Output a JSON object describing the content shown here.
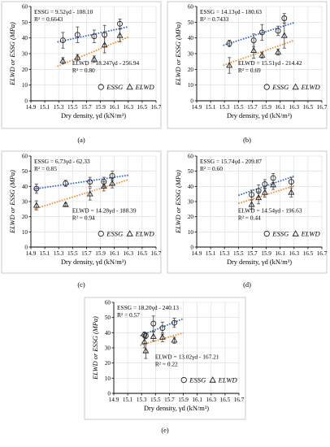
{
  "colors": {
    "essg": "#2e62c4",
    "elwd": "#f08a24",
    "axis": "#000000",
    "grid": "#d9d9d9",
    "frame": "#bfbfbf"
  },
  "chart_data": [
    {
      "type": "scatter",
      "panel_label": "(a)",
      "xlabel": "Dry density, γd (kN/m³)",
      "ylabel": "ELWD or ESSG (MPa)",
      "xlim": [
        14.9,
        16.7
      ],
      "ylim": [
        0,
        60
      ],
      "xticks": [
        "14.9",
        "15.1",
        "15.3",
        "15.5",
        "15.7",
        "15.9",
        "16.1",
        "16.3",
        "16.5",
        "16.7"
      ],
      "yticks": [
        "0",
        "10",
        "20",
        "30",
        "40",
        "50",
        "60"
      ],
      "grid": true,
      "legend": "bottom-right",
      "series": [
        {
          "name": "ESSG",
          "marker": "circle",
          "points": [
            [
              15.36,
              38.5,
              5
            ],
            [
              15.57,
              42,
              5
            ],
            [
              15.81,
              41,
              4
            ],
            [
              15.96,
              42,
              6
            ],
            [
              16.18,
              49,
              3
            ]
          ],
          "fit": {
            "equation": "ESSG = 9.52γd - 108.10",
            "r2": "R² = 0.6643",
            "slope": 9.52,
            "intercept": -108.1,
            "xrange": [
              15.28,
              16.3
            ]
          }
        },
        {
          "name": "ELWD",
          "marker": "triangle",
          "points": [
            [
              15.36,
              25.5,
              2
            ],
            [
              15.57,
              27.5,
              2
            ],
            [
              15.81,
              26.5,
              2
            ],
            [
              15.96,
              35.5,
              5
            ],
            [
              16.18,
              41.5,
              4
            ]
          ],
          "fit": {
            "equation": "ELWD = 18.247γd - 256.94",
            "r2": "R² = 0.80",
            "slope": 18.247,
            "intercept": -256.94,
            "xrange": [
              15.28,
              16.3
            ]
          }
        }
      ]
    },
    {
      "type": "scatter",
      "panel_label": "(b)",
      "xlabel": "Dry density, γd (kN/m³)",
      "ylabel": "ELWD or ESSG (MPa)",
      "xlim": [
        14.9,
        16.7
      ],
      "ylim": [
        0,
        60
      ],
      "xticks": [
        "14.9",
        "15.1",
        "15.3",
        "15.5",
        "15.7",
        "15.9",
        "16.1",
        "16.3",
        "16.5",
        "16.7"
      ],
      "yticks": [
        "0",
        "10",
        "20",
        "30",
        "40",
        "50",
        "60"
      ],
      "grid": true,
      "legend": "bottom-right",
      "series": [
        {
          "name": "ESSG",
          "marker": "circle",
          "points": [
            [
              15.37,
              36.5,
              2
            ],
            [
              15.72,
              38.5,
              4
            ],
            [
              15.84,
              43.5,
              5
            ],
            [
              16.07,
              44.5,
              3
            ],
            [
              16.16,
              52.5,
              3
            ]
          ],
          "fit": {
            "equation": "ESSG = 14.13γd - 180.63",
            "r2": "R² = 0.7433",
            "slope": 14.13,
            "intercept": -180.63,
            "xrange": [
              15.28,
              16.3
            ]
          }
        },
        {
          "name": "ELWD",
          "marker": "triangle",
          "points": [
            [
              15.37,
              22.5,
              5
            ],
            [
              15.72,
              32,
              5
            ],
            [
              15.84,
              29,
              2
            ],
            [
              16.07,
              31,
              2
            ],
            [
              16.16,
              41.5,
              8
            ]
          ],
          "fit": {
            "equation": "ELWD = 15.51γd - 214.42",
            "r2": "R² = 0.69",
            "slope": 15.51,
            "intercept": -214.42,
            "xrange": [
              15.28,
              16.3
            ]
          }
        }
      ]
    },
    {
      "type": "scatter",
      "panel_label": "(c)",
      "xlabel": "Dry density, γd (kN/m³)",
      "ylabel": "ELWD or ESSG (MPa)",
      "xlim": [
        14.9,
        16.7
      ],
      "ylim": [
        0,
        60
      ],
      "xticks": [
        "14.9",
        "15.1",
        "15.3",
        "15.5",
        "15.7",
        "15.9",
        "16.1",
        "16.3",
        "16.5",
        "16.7"
      ],
      "yticks": [
        "0",
        "10",
        "20",
        "30",
        "40",
        "50",
        "60"
      ],
      "grid": true,
      "legend": "bottom-right",
      "series": [
        {
          "name": "ESSG",
          "marker": "circle",
          "points": [
            [
              14.98,
              38.5,
              3
            ],
            [
              15.4,
              42,
              2
            ],
            [
              15.75,
              43,
              3
            ],
            [
              15.95,
              43,
              3
            ],
            [
              16.07,
              47,
              3
            ]
          ],
          "fit": {
            "equation": "ESSG = 6.73γd - 62.33",
            "r2": "R² = 0.85",
            "slope": 6.73,
            "intercept": -62.33,
            "xrange": [
              14.95,
              16.3
            ]
          }
        },
        {
          "name": "ELWD",
          "marker": "triangle",
          "points": [
            [
              14.98,
              27.5,
              3
            ],
            [
              15.4,
              28,
              1
            ],
            [
              15.75,
              35,
              4
            ],
            [
              15.95,
              40,
              3
            ],
            [
              16.07,
              42,
              3
            ]
          ],
          "fit": {
            "equation": "ELWD = 14.28γd - 188.39",
            "r2": "R² = 0.94",
            "slope": 14.28,
            "intercept": -188.39,
            "xrange": [
              14.95,
              16.3
            ]
          }
        }
      ]
    },
    {
      "type": "scatter",
      "panel_label": "(d)",
      "xlabel": "Dry density, γd (kN/m³)",
      "ylabel": "ELWD or ESSG (MPa)",
      "xlim": [
        14.9,
        16.7
      ],
      "ylim": [
        0,
        60
      ],
      "xticks": [
        "14.9",
        "15.1",
        "15.3",
        "15.5",
        "15.7",
        "15.9",
        "16.1",
        "16.3",
        "16.5",
        "16.7"
      ],
      "yticks": [
        "0",
        "10",
        "20",
        "30",
        "40",
        "50",
        "60"
      ],
      "grid": true,
      "legend": "bottom-right",
      "series": [
        {
          "name": "ESSG",
          "marker": "circle",
          "points": [
            [
              15.69,
              34.5,
              3
            ],
            [
              15.79,
              37,
              4
            ],
            [
              15.88,
              41.5,
              3
            ],
            [
              16.0,
              45.5,
              3
            ],
            [
              16.26,
              43,
              3
            ]
          ],
          "fit": {
            "equation": "ESSG = 15.74γd - 209.87",
            "r2": "R² = 0.60",
            "slope": 15.74,
            "intercept": -209.87,
            "xrange": [
              15.5,
              16.3
            ]
          }
        },
        {
          "name": "ELWD",
          "marker": "triangle",
          "points": [
            [
              15.69,
              28,
              3
            ],
            [
              15.79,
              32.5,
              4
            ],
            [
              15.88,
              36,
              3
            ],
            [
              16.0,
              41,
              3
            ],
            [
              16.26,
              36,
              3
            ]
          ],
          "fit": {
            "equation": "ELWD = 14.54γd - 196.63",
            "r2": "R² = 0.44",
            "slope": 14.54,
            "intercept": -196.63,
            "xrange": [
              15.5,
              16.3
            ]
          }
        }
      ]
    },
    {
      "type": "scatter",
      "panel_label": "(e)",
      "xlabel": "Dry density, γd (kN/m³)",
      "ylabel": "ELWD or ESSG (MPa)",
      "xlim": [
        14.9,
        16.7
      ],
      "ylim": [
        0,
        60
      ],
      "xticks": [
        "14.9",
        "15.1",
        "15.3",
        "15.5",
        "15.7",
        "15.9",
        "16.1",
        "16.3",
        "16.5",
        "16.7"
      ],
      "yticks": [
        "0",
        "10",
        "20",
        "30",
        "40",
        "50",
        "60"
      ],
      "grid": true,
      "legend": "bottom-right",
      "series": [
        {
          "name": "ESSG",
          "marker": "circle",
          "points": [
            [
              15.34,
              38.5,
              2
            ],
            [
              15.36,
              38,
              2
            ],
            [
              15.47,
              46,
              5
            ],
            [
              15.6,
              43,
              4
            ],
            [
              15.77,
              46.5,
              3
            ]
          ],
          "fit": {
            "equation": "ESSG = 18.20γd - 240.13",
            "r2": "R² = 0.57",
            "slope": 18.2,
            "intercept": -240.13,
            "xrange": [
              15.28,
              15.9
            ]
          }
        },
        {
          "name": "ELWD",
          "marker": "triangle",
          "points": [
            [
              15.34,
              34,
              4
            ],
            [
              15.36,
              28,
              5
            ],
            [
              15.47,
              37.5,
              3
            ],
            [
              15.6,
              37,
              3
            ],
            [
              15.77,
              35,
              2
            ]
          ],
          "fit": {
            "equation": "ELWD = 13.02γd - 167.21",
            "r2": "R² = 0.22",
            "slope": 13.02,
            "intercept": -167.21,
            "xrange": [
              15.28,
              15.9
            ]
          }
        }
      ]
    }
  ]
}
